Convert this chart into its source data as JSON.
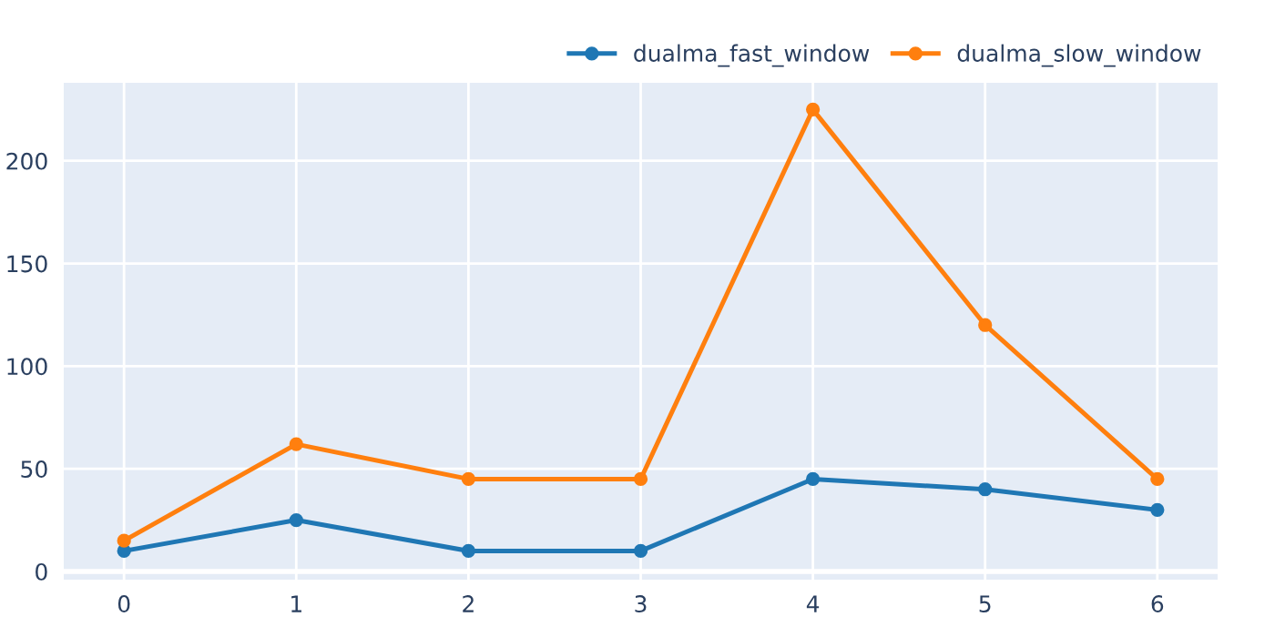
{
  "chart_data": {
    "type": "line",
    "x": [
      0,
      1,
      2,
      3,
      4,
      5,
      6
    ],
    "series": [
      {
        "name": "dualma_fast_window",
        "color": "#1f77b4",
        "values": [
          10,
          25,
          10,
          10,
          45,
          40,
          30
        ]
      },
      {
        "name": "dualma_slow_window",
        "color": "#ff7f0e",
        "values": [
          15,
          62,
          45,
          45,
          225,
          120,
          45
        ]
      }
    ],
    "xlim": [
      -0.35,
      6.35
    ],
    "xticks": [
      0,
      1,
      2,
      3,
      4,
      5,
      6
    ],
    "ylim": [
      -4,
      238
    ],
    "yticks": [
      0,
      50,
      100,
      150,
      200
    ],
    "grid": true,
    "legend": "top right",
    "marker": "circle",
    "line_style": "solid"
  }
}
